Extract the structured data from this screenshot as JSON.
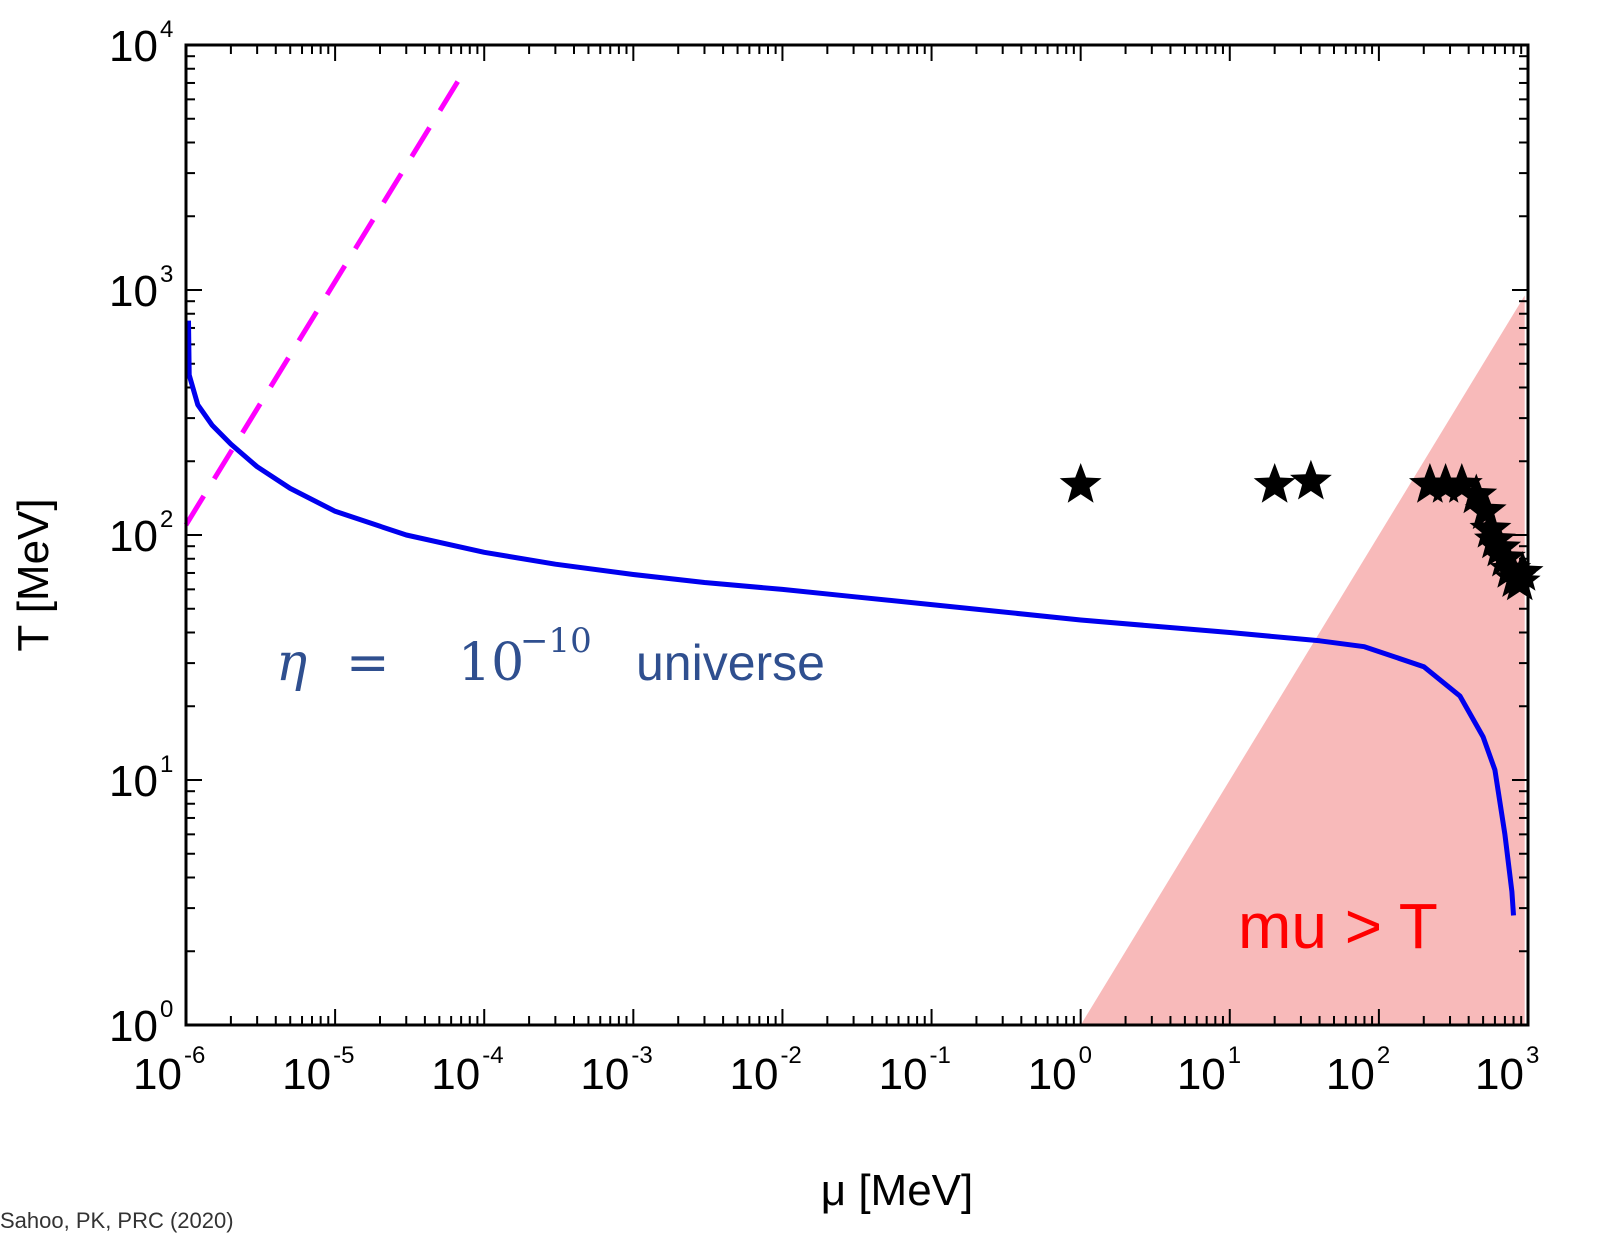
{
  "chart_data": {
    "type": "line",
    "xlabel": "μ [MeV]",
    "ylabel": "T [MeV]",
    "xscale": "log",
    "yscale": "log",
    "xlim": [
      1e-06,
      1000
    ],
    "ylim": [
      1,
      10000
    ],
    "x_ticks": [
      {
        "base": "10",
        "exp": "-6",
        "value": 1e-06
      },
      {
        "base": "10",
        "exp": "-5",
        "value": 1e-05
      },
      {
        "base": "10",
        "exp": "-4",
        "value": 0.0001
      },
      {
        "base": "10",
        "exp": "-3",
        "value": 0.001
      },
      {
        "base": "10",
        "exp": "-2",
        "value": 0.01
      },
      {
        "base": "10",
        "exp": "-1",
        "value": 0.1
      },
      {
        "base": "10",
        "exp": "0",
        "value": 1
      },
      {
        "base": "10",
        "exp": "1",
        "value": 10
      },
      {
        "base": "10",
        "exp": "2",
        "value": 100
      },
      {
        "base": "10",
        "exp": "3",
        "value": 1000
      }
    ],
    "y_ticks": [
      {
        "base": "10",
        "exp": "0",
        "value": 1
      },
      {
        "base": "10",
        "exp": "1",
        "value": 10
      },
      {
        "base": "10",
        "exp": "2",
        "value": 100
      },
      {
        "base": "10",
        "exp": "3",
        "value": 1000
      },
      {
        "base": "10",
        "exp": "4",
        "value": 10000
      }
    ],
    "grid": false,
    "series": [
      {
        "style": "solid",
        "color": "#0000ee",
        "points": [
          [
            1.04e-06,
            750
          ],
          [
            1.05e-06,
            450
          ],
          [
            1.2e-06,
            340
          ],
          [
            1.5e-06,
            280
          ],
          [
            2e-06,
            235
          ],
          [
            3e-06,
            190
          ],
          [
            5e-06,
            155
          ],
          [
            1e-05,
            125
          ],
          [
            3e-05,
            100
          ],
          [
            0.0001,
            85
          ],
          [
            0.0003,
            76
          ],
          [
            0.001,
            69
          ],
          [
            0.003,
            64
          ],
          [
            0.01,
            60
          ],
          [
            0.03,
            56
          ],
          [
            0.1,
            52
          ],
          [
            1,
            45
          ],
          [
            10,
            40
          ],
          [
            40,
            37
          ],
          [
            80,
            35
          ],
          [
            200,
            29
          ],
          [
            350,
            22
          ],
          [
            500,
            15
          ],
          [
            600,
            11
          ],
          [
            700,
            6
          ],
          [
            780,
            3.5
          ],
          [
            800,
            2.8
          ]
        ]
      },
      {
        "style": "dashed",
        "color": "#ff00ff",
        "points": [
          [
            1e-06,
            110
          ],
          [
            7.5e-05,
            8000
          ]
        ]
      },
      {
        "type": "scatter",
        "marker": "star",
        "color": "#000000",
        "points": [
          [
            1,
            160
          ],
          [
            20,
            160
          ],
          [
            35,
            165
          ],
          [
            220,
            160
          ],
          [
            280,
            160
          ],
          [
            360,
            160
          ],
          [
            450,
            145
          ],
          [
            520,
            125
          ],
          [
            560,
            105
          ],
          [
            600,
            95
          ],
          [
            650,
            88
          ],
          [
            700,
            80
          ],
          [
            760,
            72
          ],
          [
            820,
            66
          ],
          [
            880,
            64
          ],
          [
            920,
            70
          ]
        ]
      }
    ],
    "shaded_region": {
      "color": "#f5a3a3",
      "vertices": [
        [
          1,
          1
        ],
        [
          950,
          950
        ],
        [
          950,
          1
        ]
      ]
    },
    "annotations": {
      "eta_symbol": "η",
      "eta_equals": "=",
      "eta_base": "10",
      "eta_exp": "−10",
      "eta_word": "universe",
      "region_label": "mu > T"
    }
  },
  "citation": "Sahoo, PK, PRC (2020)"
}
